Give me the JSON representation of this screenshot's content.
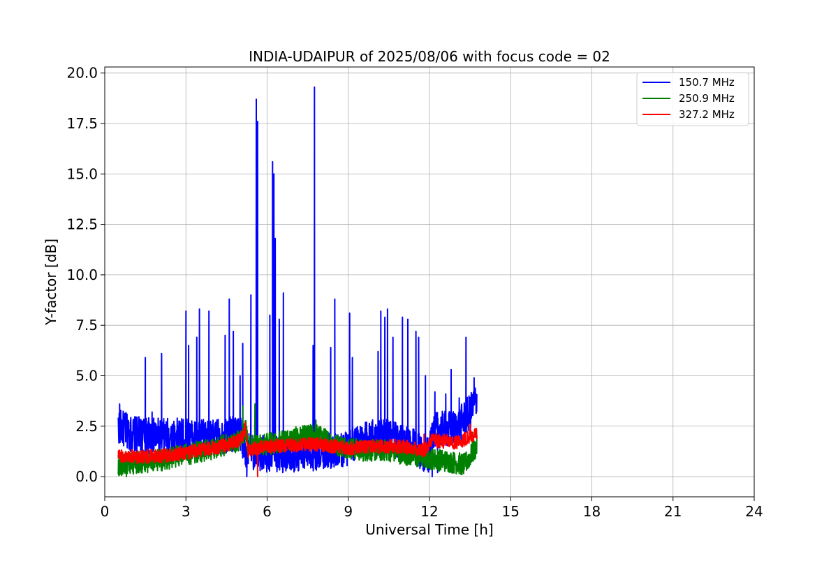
{
  "chart_data": {
    "type": "line",
    "title": "INDIA-UDAIPUR of 2025/08/06 with focus code = 02",
    "xlabel": "Universal Time [h]",
    "ylabel": "Y-factor [dB]",
    "xlim": [
      0,
      24
    ],
    "ylim": [
      -1.0,
      20.3
    ],
    "xticks": [
      0,
      3,
      6,
      9,
      12,
      15,
      18,
      21,
      24
    ],
    "xtick_labels": [
      "0",
      "3",
      "6",
      "9",
      "12",
      "15",
      "18",
      "21",
      "24"
    ],
    "yticks": [
      0,
      2.5,
      5,
      7.5,
      10,
      12.5,
      15,
      17.5,
      20
    ],
    "ytick_labels": [
      "0.0",
      "2.5",
      "5.0",
      "7.5",
      "10.0",
      "12.5",
      "15.0",
      "17.5",
      "20.0"
    ],
    "grid": true,
    "legend_position": "top-right",
    "x_range_of_data": [
      0.5,
      13.75
    ],
    "series": [
      {
        "name": "150.7 MHz",
        "color": "#0000ff",
        "baseline": [
          [
            0.5,
            2.5
          ],
          [
            1.0,
            2.1
          ],
          [
            2.0,
            2.0
          ],
          [
            3.0,
            2.0
          ],
          [
            4.0,
            1.9
          ],
          [
            5.0,
            2.2
          ],
          [
            5.2,
            1.3
          ],
          [
            6.0,
            1.1
          ],
          [
            7.0,
            1.1
          ],
          [
            8.0,
            1.2
          ],
          [
            9.0,
            1.4
          ],
          [
            9.5,
            1.9
          ],
          [
            10.5,
            2.0
          ],
          [
            11.5,
            1.4
          ],
          [
            12.0,
            1.0
          ],
          [
            12.1,
            2.3
          ],
          [
            13.0,
            2.4
          ],
          [
            13.5,
            3.2
          ],
          [
            13.75,
            3.8
          ]
        ],
        "noise": 0.9,
        "peaks": [
          [
            0.55,
            3.6
          ],
          [
            1.5,
            5.9
          ],
          [
            1.75,
            3.2
          ],
          [
            2.1,
            6.1
          ],
          [
            3.0,
            8.2
          ],
          [
            3.1,
            6.5
          ],
          [
            3.4,
            6.9
          ],
          [
            3.5,
            8.3
          ],
          [
            3.85,
            8.2
          ],
          [
            4.45,
            7.0
          ],
          [
            4.6,
            8.8
          ],
          [
            4.75,
            7.2
          ],
          [
            5.0,
            5.0
          ],
          [
            5.1,
            6.6
          ],
          [
            5.4,
            9.0
          ],
          [
            5.6,
            18.7
          ],
          [
            5.65,
            17.6
          ],
          [
            6.1,
            8.0
          ],
          [
            6.2,
            15.6
          ],
          [
            6.25,
            15.0
          ],
          [
            6.3,
            11.8
          ],
          [
            6.45,
            7.8
          ],
          [
            6.6,
            9.1
          ],
          [
            7.75,
            19.3
          ],
          [
            7.7,
            6.5
          ],
          [
            8.35,
            6.4
          ],
          [
            8.5,
            8.8
          ],
          [
            9.05,
            8.1
          ],
          [
            9.15,
            5.9
          ],
          [
            10.1,
            6.2
          ],
          [
            10.2,
            8.2
          ],
          [
            10.35,
            7.9
          ],
          [
            10.45,
            8.3
          ],
          [
            10.65,
            6.9
          ],
          [
            11.0,
            7.9
          ],
          [
            11.2,
            7.8
          ],
          [
            11.5,
            7.2
          ],
          [
            11.6,
            6.9
          ],
          [
            11.85,
            5.0
          ],
          [
            12.2,
            4.2
          ],
          [
            12.6,
            4.1
          ],
          [
            12.8,
            5.3
          ],
          [
            13.1,
            3.9
          ],
          [
            13.35,
            6.9
          ],
          [
            13.65,
            4.9
          ]
        ],
        "dips": [
          [
            5.25,
            0.0
          ],
          [
            12.1,
            0.0
          ],
          [
            12.3,
            0.2
          ]
        ]
      },
      {
        "name": "250.9 MHz",
        "color": "#008000",
        "baseline": [
          [
            0.5,
            0.6
          ],
          [
            2.0,
            0.8
          ],
          [
            3.0,
            1.1
          ],
          [
            4.0,
            1.4
          ],
          [
            5.0,
            1.8
          ],
          [
            5.2,
            2.4
          ],
          [
            5.3,
            1.5
          ],
          [
            6.0,
            1.6
          ],
          [
            7.0,
            1.9
          ],
          [
            7.8,
            2.1
          ],
          [
            8.5,
            1.6
          ],
          [
            9.5,
            1.3
          ],
          [
            10.5,
            1.3
          ],
          [
            11.5,
            1.0
          ],
          [
            12.5,
            0.8
          ],
          [
            13.3,
            0.6
          ],
          [
            13.75,
            1.5
          ]
        ],
        "noise": 0.55,
        "peaks": [
          [
            5.1,
            3.5
          ],
          [
            5.55,
            3.6
          ],
          [
            7.8,
            2.8
          ],
          [
            13.6,
            2.2
          ]
        ],
        "dips": [
          [
            0.8,
            0.0
          ],
          [
            13.2,
            0.1
          ]
        ]
      },
      {
        "name": "327.2 MHz",
        "color": "#ff0000",
        "baseline": [
          [
            0.5,
            1.0
          ],
          [
            2.0,
            1.0
          ],
          [
            3.0,
            1.2
          ],
          [
            4.0,
            1.4
          ],
          [
            5.0,
            1.8
          ],
          [
            5.2,
            2.4
          ],
          [
            5.3,
            1.3
          ],
          [
            6.0,
            1.5
          ],
          [
            7.5,
            1.6
          ],
          [
            8.0,
            1.6
          ],
          [
            9.0,
            1.4
          ],
          [
            10.0,
            1.5
          ],
          [
            11.0,
            1.5
          ],
          [
            11.8,
            1.3
          ],
          [
            12.1,
            1.8
          ],
          [
            13.0,
            1.7
          ],
          [
            13.75,
            2.1
          ]
        ],
        "noise": 0.35,
        "peaks": [
          [
            5.2,
            2.7
          ],
          [
            11.8,
            2.1
          ],
          [
            13.5,
            2.6
          ]
        ],
        "dips": [
          [
            5.65,
            0.0
          ]
        ]
      }
    ]
  }
}
